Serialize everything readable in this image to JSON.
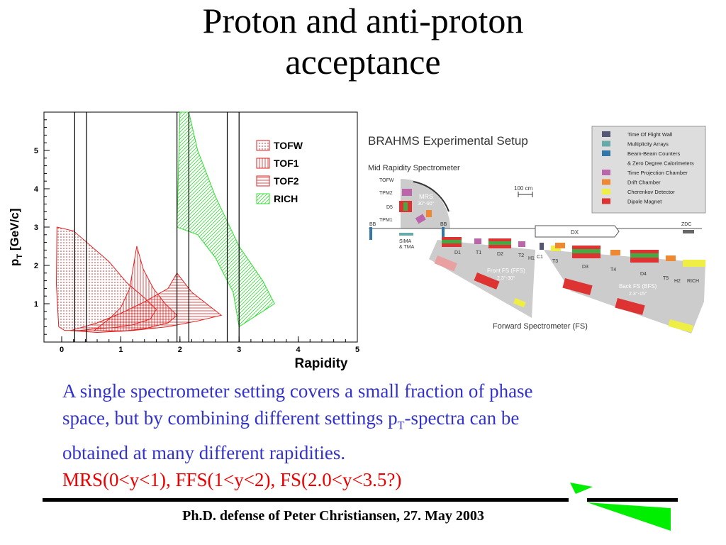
{
  "title": {
    "line1": "Proton and anti-proton",
    "line2": "acceptance"
  },
  "chart_data": {
    "type": "area",
    "xlabel": "Rapidity",
    "ylabel": "p_T [GeV/c]",
    "ylabel_main": "p",
    "ylabel_sub": "T",
    "ylabel_rest": " [GeV/c]",
    "xlim": [
      -0.3,
      5
    ],
    "ylim": [
      0,
      6
    ],
    "xticks": [
      "0",
      "1",
      "2",
      "3",
      "4",
      "5"
    ],
    "yticks": [
      "1",
      "2",
      "3",
      "4",
      "5"
    ],
    "grid": false,
    "legend_position": "top-right",
    "vertical_lines_x": [
      0.22,
      0.42,
      1.95,
      2.15,
      2.8,
      3.0
    ],
    "series": [
      {
        "name": "TOFW",
        "pattern": "dots",
        "color": "#dd2222",
        "polygon": [
          [
            -0.08,
            3.0
          ],
          [
            0.2,
            2.9
          ],
          [
            0.5,
            2.5
          ],
          [
            0.8,
            2.1
          ],
          [
            1.1,
            1.55
          ],
          [
            1.4,
            1.15
          ],
          [
            1.6,
            0.85
          ],
          [
            1.5,
            0.6
          ],
          [
            1.2,
            0.45
          ],
          [
            0.9,
            0.38
          ],
          [
            0.6,
            0.35
          ],
          [
            0.3,
            0.3
          ],
          [
            0.05,
            0.3
          ],
          [
            -0.05,
            0.4
          ],
          [
            -0.09,
            1.5
          ]
        ]
      },
      {
        "name": "TOF1",
        "pattern": "vertical",
        "color": "#dd2222",
        "polygon": [
          [
            0.55,
            0.3
          ],
          [
            0.8,
            0.6
          ],
          [
            1.0,
            0.9
          ],
          [
            1.15,
            1.4
          ],
          [
            1.27,
            2.5
          ],
          [
            1.38,
            1.9
          ],
          [
            1.55,
            1.4
          ],
          [
            1.75,
            1.0
          ],
          [
            1.95,
            0.7
          ],
          [
            1.8,
            0.5
          ],
          [
            1.4,
            0.35
          ],
          [
            1.0,
            0.28
          ]
        ]
      },
      {
        "name": "TOF2",
        "pattern": "horizontal",
        "color": "#dd2222",
        "polygon": [
          [
            0.15,
            0.3
          ],
          [
            0.6,
            0.5
          ],
          [
            1.0,
            0.75
          ],
          [
            1.4,
            1.05
          ],
          [
            1.8,
            1.4
          ],
          [
            1.95,
            1.8
          ],
          [
            2.2,
            1.3
          ],
          [
            2.45,
            1.0
          ],
          [
            2.7,
            0.7
          ],
          [
            2.3,
            0.55
          ],
          [
            1.8,
            0.4
          ],
          [
            1.2,
            0.3
          ],
          [
            0.6,
            0.25
          ]
        ]
      },
      {
        "name": "RICH",
        "pattern": "diagonal",
        "color": "#33dd33",
        "polygon": [
          [
            2.0,
            6.0
          ],
          [
            2.15,
            6.0
          ],
          [
            2.3,
            5.0
          ],
          [
            2.6,
            3.8
          ],
          [
            3.0,
            2.5
          ],
          [
            3.4,
            1.6
          ],
          [
            3.6,
            1.0
          ],
          [
            3.2,
            0.6
          ],
          [
            3.0,
            0.4
          ],
          [
            2.9,
            1.3
          ],
          [
            2.6,
            2.2
          ],
          [
            2.3,
            2.8
          ],
          [
            1.95,
            3.0
          ]
        ]
      }
    ]
  },
  "setup": {
    "title": "BRAHMS Experimental Setup",
    "mrs_label": "Mid Rapidity Spectrometer",
    "mrs_tag": "MRS",
    "mrs_angle": "30°-90°",
    "tofw": "TOFW",
    "tpm2": "TPM2",
    "d5": "D5",
    "tpm1": "TPM1",
    "bb_left": "BB",
    "bb_right": "BB",
    "sima": "SIMA",
    "tma": "& TMA",
    "scale": "100 cm",
    "dx": "DX",
    "zdc": "ZDC",
    "d1": "D1",
    "t1": "T1",
    "d2": "D2",
    "t2": "T2",
    "h1": "H1",
    "c1": "C1",
    "t3": "T3",
    "d3": "D3",
    "t4": "T4",
    "d4": "D4",
    "t5": "T5",
    "h2": "H2",
    "rich": "RICH",
    "ffs": "Front FS (FFS)",
    "ffs_angle": "2.3°-30°",
    "bfs": "Back FS (BFS)",
    "bfs_angle": "2.3°-15°",
    "fs_label": "Forward Spectrometer (FS)",
    "legend": [
      {
        "label": "Time Of Flight Wall",
        "color": "#555577"
      },
      {
        "label": "Multiplicity Arrays",
        "color": "#66aaaa"
      },
      {
        "label": "Beam-Beam Counters",
        "color": "#3377aa"
      },
      {
        "label": "& Zero Degree Calorimeters",
        "color": ""
      },
      {
        "label": "Time Projection Chamber",
        "color": "#bb66aa"
      },
      {
        "label": "Drift Chamber",
        "color": "#ee8833"
      },
      {
        "label": "Cherenkov Detector",
        "color": "#eeee44"
      },
      {
        "label": "Dipole Magnet",
        "color": "#dd3333"
      }
    ]
  },
  "body": {
    "line1": "A single spectrometer setting covers a small fraction of phase",
    "line2a": "space, but by combining different settings p",
    "line2sub": "T",
    "line2b": "-spectra can be",
    "line3": "obtained at many different rapidities.",
    "line4": "MRS(0<y<1), FFS(1<y<2), FS(2.0<y<3.5?)"
  },
  "footer": {
    "text": "Ph.D. defense of Peter Christiansen, 27. May 2003"
  },
  "colors": {
    "body_text": "#3333cc",
    "highlight": "#ee0000",
    "logo": "#00ee00"
  }
}
